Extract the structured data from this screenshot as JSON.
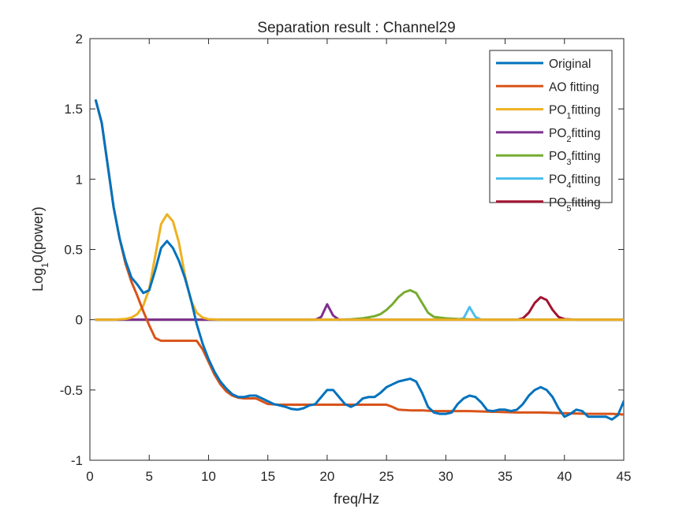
{
  "chart_data": {
    "type": "line",
    "title": "Separation result : Channel29",
    "xlabel": "freq/Hz",
    "ylabel": {
      "base": "Log",
      "sub": "1",
      "rest": "0(power)"
    },
    "xlim": [
      0,
      45
    ],
    "ylim": [
      -1,
      2
    ],
    "xticks": [
      0,
      5,
      10,
      15,
      20,
      25,
      30,
      35,
      40,
      45
    ],
    "yticks": [
      -1,
      -0.5,
      0,
      0.5,
      1,
      1.5,
      2
    ],
    "xtick_labels": [
      "0",
      "5",
      "10",
      "15",
      "20",
      "25",
      "30",
      "35",
      "40",
      "45"
    ],
    "ytick_labels": [
      "-1",
      "-0.5",
      "0",
      "0.5",
      "1",
      "1.5",
      "2"
    ],
    "grid": false,
    "legend_position": "top-right",
    "series": [
      {
        "name": "Original",
        "legend": {
          "base": "Original",
          "sub": "",
          "rest": ""
        },
        "color": "#0072BD",
        "points": [
          [
            0.5,
            1.56
          ],
          [
            1,
            1.4
          ],
          [
            1.5,
            1.1
          ],
          [
            2,
            0.8
          ],
          [
            2.5,
            0.58
          ],
          [
            3,
            0.42
          ],
          [
            3.5,
            0.3
          ],
          [
            4,
            0.25
          ],
          [
            4.5,
            0.19
          ],
          [
            5,
            0.21
          ],
          [
            5.5,
            0.35
          ],
          [
            6,
            0.51
          ],
          [
            6.5,
            0.56
          ],
          [
            7,
            0.51
          ],
          [
            7.5,
            0.42
          ],
          [
            8,
            0.3
          ],
          [
            8.5,
            0.15
          ],
          [
            9,
            -0.03
          ],
          [
            9.5,
            -0.17
          ],
          [
            10,
            -0.28
          ],
          [
            10.5,
            -0.37
          ],
          [
            11,
            -0.44
          ],
          [
            11.5,
            -0.49
          ],
          [
            12,
            -0.53
          ],
          [
            12.5,
            -0.55
          ],
          [
            13,
            -0.55
          ],
          [
            13.5,
            -0.54
          ],
          [
            14,
            -0.54
          ],
          [
            14.5,
            -0.56
          ],
          [
            15,
            -0.58
          ],
          [
            15.5,
            -0.6
          ],
          [
            16,
            -0.61
          ],
          [
            16.5,
            -0.62
          ],
          [
            17,
            -0.635
          ],
          [
            17.5,
            -0.64
          ],
          [
            18,
            -0.63
          ],
          [
            18.5,
            -0.61
          ],
          [
            19,
            -0.6
          ],
          [
            19.5,
            -0.55
          ],
          [
            20,
            -0.5
          ],
          [
            20.5,
            -0.5
          ],
          [
            21,
            -0.55
          ],
          [
            21.5,
            -0.6
          ],
          [
            22,
            -0.62
          ],
          [
            22.5,
            -0.6
          ],
          [
            23,
            -0.56
          ],
          [
            23.5,
            -0.55
          ],
          [
            24,
            -0.55
          ],
          [
            24.5,
            -0.52
          ],
          [
            25,
            -0.48
          ],
          [
            25.5,
            -0.46
          ],
          [
            26,
            -0.44
          ],
          [
            26.5,
            -0.43
          ],
          [
            27,
            -0.42
          ],
          [
            27.5,
            -0.44
          ],
          [
            28,
            -0.52
          ],
          [
            28.5,
            -0.62
          ],
          [
            29,
            -0.66
          ],
          [
            29.5,
            -0.67
          ],
          [
            30,
            -0.67
          ],
          [
            30.5,
            -0.66
          ],
          [
            31,
            -0.6
          ],
          [
            31.5,
            -0.56
          ],
          [
            32,
            -0.54
          ],
          [
            32.5,
            -0.55
          ],
          [
            33,
            -0.59
          ],
          [
            33.5,
            -0.645
          ],
          [
            34,
            -0.65
          ],
          [
            34.5,
            -0.64
          ],
          [
            35,
            -0.64
          ],
          [
            35.5,
            -0.65
          ],
          [
            36,
            -0.64
          ],
          [
            36.5,
            -0.6
          ],
          [
            37,
            -0.54
          ],
          [
            37.5,
            -0.5
          ],
          [
            38,
            -0.48
          ],
          [
            38.5,
            -0.5
          ],
          [
            39,
            -0.55
          ],
          [
            39.5,
            -0.63
          ],
          [
            40,
            -0.69
          ],
          [
            40.5,
            -0.67
          ],
          [
            41,
            -0.64
          ],
          [
            41.5,
            -0.65
          ],
          [
            42,
            -0.69
          ],
          [
            42.5,
            -0.69
          ],
          [
            43,
            -0.69
          ],
          [
            43.5,
            -0.69
          ],
          [
            44,
            -0.71
          ],
          [
            44.5,
            -0.68
          ],
          [
            45,
            -0.58
          ]
        ]
      },
      {
        "name": "AO fitting",
        "legend": {
          "base": "AO fitting",
          "sub": "",
          "rest": ""
        },
        "color": "#D95319",
        "points": [
          [
            0.5,
            1.56
          ],
          [
            1,
            1.4
          ],
          [
            1.5,
            1.1
          ],
          [
            2,
            0.8
          ],
          [
            2.5,
            0.58
          ],
          [
            3,
            0.4
          ],
          [
            3.5,
            0.27
          ],
          [
            4,
            0.17
          ],
          [
            4.5,
            0.06
          ],
          [
            5,
            -0.04
          ],
          [
            5.5,
            -0.13
          ],
          [
            6,
            -0.15
          ],
          [
            6.5,
            -0.15
          ],
          [
            7,
            -0.15
          ],
          [
            8,
            -0.15
          ],
          [
            9,
            -0.15
          ],
          [
            9.5,
            -0.21
          ],
          [
            10,
            -0.3
          ],
          [
            10.5,
            -0.39
          ],
          [
            11,
            -0.46
          ],
          [
            11.5,
            -0.51
          ],
          [
            12,
            -0.54
          ],
          [
            12.5,
            -0.555
          ],
          [
            13,
            -0.56
          ],
          [
            14,
            -0.56
          ],
          [
            14.5,
            -0.58
          ],
          [
            15,
            -0.6
          ],
          [
            16,
            -0.605
          ],
          [
            18,
            -0.605
          ],
          [
            20,
            -0.605
          ],
          [
            22,
            -0.605
          ],
          [
            25,
            -0.605
          ],
          [
            25.5,
            -0.62
          ],
          [
            26,
            -0.64
          ],
          [
            27,
            -0.645
          ],
          [
            28,
            -0.645
          ],
          [
            29,
            -0.65
          ],
          [
            30,
            -0.65
          ],
          [
            32,
            -0.65
          ],
          [
            34,
            -0.655
          ],
          [
            36,
            -0.66
          ],
          [
            38,
            -0.66
          ],
          [
            40,
            -0.665
          ],
          [
            42,
            -0.67
          ],
          [
            44,
            -0.67
          ],
          [
            45,
            -0.675
          ]
        ]
      },
      {
        "name": "PO1fitting",
        "legend": {
          "base": "PO",
          "sub": "1",
          "rest": "fitting"
        },
        "color": "#EDB120",
        "points": [
          [
            0.5,
            0
          ],
          [
            2,
            0
          ],
          [
            3,
            0.005
          ],
          [
            3.5,
            0.015
          ],
          [
            4,
            0.04
          ],
          [
            4.5,
            0.1
          ],
          [
            5,
            0.22
          ],
          [
            5.5,
            0.45
          ],
          [
            6,
            0.68
          ],
          [
            6.5,
            0.75
          ],
          [
            7,
            0.7
          ],
          [
            7.5,
            0.55
          ],
          [
            8,
            0.32
          ],
          [
            8.5,
            0.14
          ],
          [
            9,
            0.05
          ],
          [
            9.5,
            0.015
          ],
          [
            10,
            0.004
          ],
          [
            11,
            0
          ],
          [
            45,
            0
          ]
        ]
      },
      {
        "name": "PO2fitting",
        "legend": {
          "base": "PO",
          "sub": "2",
          "rest": "fitting"
        },
        "color": "#7E2F8E",
        "points": [
          [
            0.5,
            0
          ],
          [
            19,
            0
          ],
          [
            19.5,
            0.02
          ],
          [
            20,
            0.11
          ],
          [
            20.5,
            0.03
          ],
          [
            21,
            0
          ],
          [
            45,
            0
          ]
        ]
      },
      {
        "name": "PO3fitting",
        "legend": {
          "base": "PO",
          "sub": "3",
          "rest": "fitting"
        },
        "color": "#77AC30",
        "points": [
          [
            0.5,
            0
          ],
          [
            21,
            0
          ],
          [
            22,
            0.003
          ],
          [
            23,
            0.01
          ],
          [
            24,
            0.025
          ],
          [
            24.5,
            0.04
          ],
          [
            25,
            0.07
          ],
          [
            25.5,
            0.11
          ],
          [
            26,
            0.16
          ],
          [
            26.5,
            0.195
          ],
          [
            27,
            0.21
          ],
          [
            27.5,
            0.19
          ],
          [
            28,
            0.12
          ],
          [
            28.5,
            0.05
          ],
          [
            29,
            0.02
          ],
          [
            30,
            0.01
          ],
          [
            31,
            0.005
          ],
          [
            32,
            0.002
          ],
          [
            33,
            0
          ],
          [
            45,
            0
          ]
        ]
      },
      {
        "name": "PO4fitting",
        "legend": {
          "base": "PO",
          "sub": "4",
          "rest": "fitting"
        },
        "color": "#4DBEEE",
        "points": [
          [
            0.5,
            0
          ],
          [
            31,
            0
          ],
          [
            31.5,
            0.01
          ],
          [
            32,
            0.09
          ],
          [
            32.5,
            0.02
          ],
          [
            33,
            0
          ],
          [
            45,
            0
          ]
        ]
      },
      {
        "name": "PO5fitting",
        "legend": {
          "base": "PO",
          "sub": "5",
          "rest": "fitting"
        },
        "color": "#A2142F",
        "points": [
          [
            0.5,
            0
          ],
          [
            36,
            0
          ],
          [
            36.5,
            0.01
          ],
          [
            37,
            0.05
          ],
          [
            37.5,
            0.12
          ],
          [
            38,
            0.16
          ],
          [
            38.5,
            0.14
          ],
          [
            39,
            0.07
          ],
          [
            39.5,
            0.02
          ],
          [
            40,
            0.004
          ],
          [
            41,
            0
          ],
          [
            45,
            0
          ]
        ]
      }
    ]
  }
}
